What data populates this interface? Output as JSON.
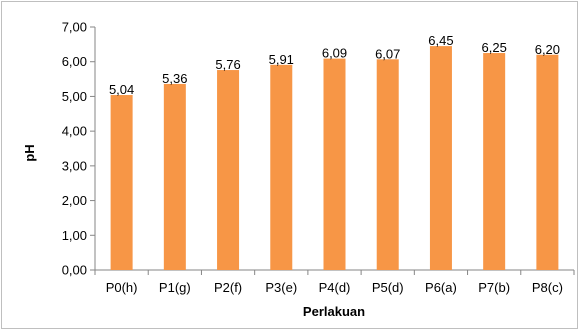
{
  "chart_data": {
    "type": "bar",
    "title": "",
    "xlabel": "Perlakuan",
    "ylabel": "pH",
    "categories": [
      "P0(h)",
      "P1(g)",
      "P2(f)",
      "P3(e)",
      "P4(d)",
      "P5(d)",
      "P6(a)",
      "P7(b)",
      "P8(c)"
    ],
    "values": [
      5.04,
      5.36,
      5.76,
      5.91,
      6.09,
      6.07,
      6.45,
      6.25,
      6.2
    ],
    "data_labels": [
      "5,04",
      "5,36",
      "5,76",
      "5,91",
      "6,09",
      "6,07",
      "6,45",
      "6,25",
      "6,20"
    ],
    "ylim": [
      0,
      7
    ],
    "yticks": [
      "0,00",
      "1,00",
      "2,00",
      "3,00",
      "4,00",
      "5,00",
      "6,00",
      "7,00"
    ],
    "bar_color": "#f79646",
    "grid": false,
    "legend": "none"
  }
}
